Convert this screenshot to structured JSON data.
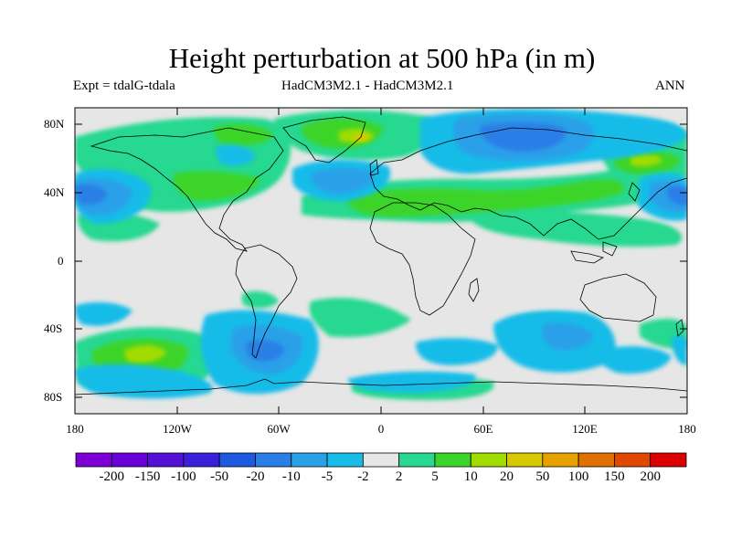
{
  "title": "Height perturbation at 500 hPa (in m)",
  "subtitle_left": "Expt = tdalG-tdala",
  "subtitle_center": "HadCM3M2.1 - HadCM3M2.1",
  "subtitle_right": "ANN",
  "map": {
    "projection": "cylindrical equidistant",
    "lon_range": [
      -180,
      180
    ],
    "lat_range": [
      -90,
      90
    ],
    "lat_ticks": [
      "80N",
      "40N",
      "0",
      "40S",
      "80S"
    ],
    "lon_ticks": [
      "180",
      "120W",
      "60W",
      "0",
      "60E",
      "120E",
      "180"
    ],
    "background_color": "#e6e6e6",
    "coastline_color": "#000000"
  },
  "colorbar": {
    "colors": [
      "#7f00d6",
      "#6a00d9",
      "#5510d6",
      "#3a20d8",
      "#1e5ae0",
      "#2a7fe6",
      "#2aa0e8",
      "#18bce8",
      "#e6e6e6",
      "#28d890",
      "#3cd42a",
      "#a0dc00",
      "#d8c800",
      "#e6a000",
      "#e07000",
      "#e04800",
      "#dc0000"
    ],
    "labels": [
      "-200",
      "-150",
      "-100",
      "-50",
      "-20",
      "-10",
      "-5",
      "-2",
      "2",
      "5",
      "10",
      "20",
      "50",
      "100",
      "150",
      "200"
    ]
  }
}
